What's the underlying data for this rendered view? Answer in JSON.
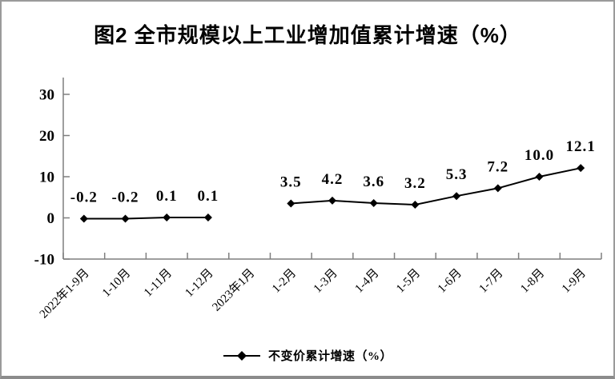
{
  "chart_data": {
    "type": "line",
    "title": "图2 全市规模以上工业增加值累计增速（%）",
    "categories": [
      "2022年1-9月",
      "1-10月",
      "1-11月",
      "1-12月",
      "2023年1月",
      "1-2月",
      "1-3月",
      "1-4月",
      "1-5月",
      "1-6月",
      "1-7月",
      "1-8月",
      "1-9月"
    ],
    "series": [
      {
        "name": "不变价累计增速（%）",
        "values": [
          -0.2,
          -0.2,
          0.1,
          0.1,
          null,
          3.5,
          4.2,
          3.6,
          3.2,
          5.3,
          7.2,
          10.0,
          12.1
        ],
        "labels": [
          "-0.2",
          "-0.2",
          "0.1",
          "0.1",
          "",
          "3.5",
          "4.2",
          "3.6",
          "3.2",
          "5.3",
          "7.2",
          "10.0",
          "12.1"
        ]
      }
    ],
    "yticks": [
      30,
      20,
      10,
      0,
      -10
    ],
    "ylim": [
      -10,
      34
    ],
    "xlabel": "",
    "ylabel": "",
    "grid": false,
    "legend_position": "bottom",
    "marker": "diamond",
    "line_color": "#000000",
    "axis_color": "#7f7f7f",
    "background_color": "#ffffff"
  }
}
